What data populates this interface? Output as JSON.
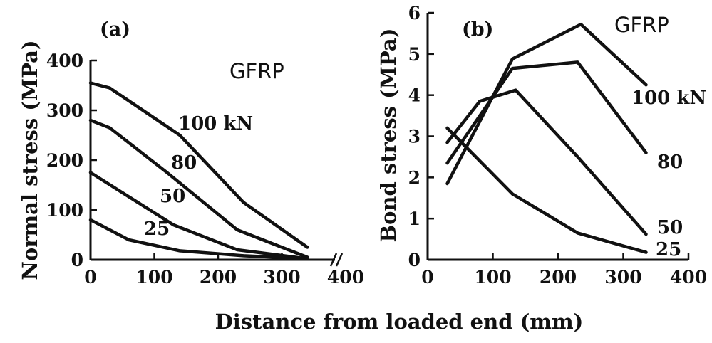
{
  "figure": {
    "shared_xlabel": "Distance from loaded end (mm)"
  },
  "chart_data": [
    {
      "type": "line",
      "panel_label": "(a)",
      "material_label": "GFRP",
      "xlabel": "",
      "ylabel": "Normal stress (MPa)",
      "xlim": [
        0,
        400
      ],
      "ylim": [
        0,
        400
      ],
      "xticks": [
        0,
        100,
        200,
        300,
        400
      ],
      "yticks": [
        0,
        100,
        200,
        300,
        400
      ],
      "axis_break": true,
      "series": [
        {
          "name": "100 kN",
          "x": [
            0,
            30,
            140,
            240,
            340
          ],
          "y": [
            355,
            345,
            250,
            115,
            25
          ]
        },
        {
          "name": "80",
          "x": [
            0,
            30,
            120,
            230,
            340
          ],
          "y": [
            280,
            265,
            175,
            60,
            5
          ]
        },
        {
          "name": "50",
          "x": [
            0,
            130,
            230,
            340
          ],
          "y": [
            175,
            70,
            20,
            2
          ]
        },
        {
          "name": "25",
          "x": [
            0,
            60,
            140,
            240,
            340
          ],
          "y": [
            80,
            40,
            18,
            8,
            2
          ]
        }
      ]
    },
    {
      "type": "line",
      "panel_label": "(b)",
      "material_label": "GFRP",
      "xlabel": "",
      "ylabel": "Bond stress (MPa)",
      "xlim": [
        0,
        400
      ],
      "ylim": [
        0,
        6
      ],
      "xticks": [
        0,
        100,
        200,
        300,
        400
      ],
      "yticks": [
        0,
        1,
        2,
        3,
        4,
        5,
        6
      ],
      "series": [
        {
          "name": "100 kN",
          "x": [
            30,
            130,
            235,
            335
          ],
          "y": [
            1.85,
            4.88,
            5.72,
            4.25
          ]
        },
        {
          "name": "80",
          "x": [
            30,
            130,
            230,
            335
          ],
          "y": [
            2.35,
            4.65,
            4.8,
            2.6
          ]
        },
        {
          "name": "50",
          "x": [
            30,
            80,
            135,
            230,
            335
          ],
          "y": [
            2.85,
            3.85,
            4.12,
            2.5,
            0.62
          ]
        },
        {
          "name": "25",
          "x": [
            30,
            130,
            230,
            335
          ],
          "y": [
            3.2,
            1.6,
            0.65,
            0.18
          ]
        }
      ]
    }
  ]
}
